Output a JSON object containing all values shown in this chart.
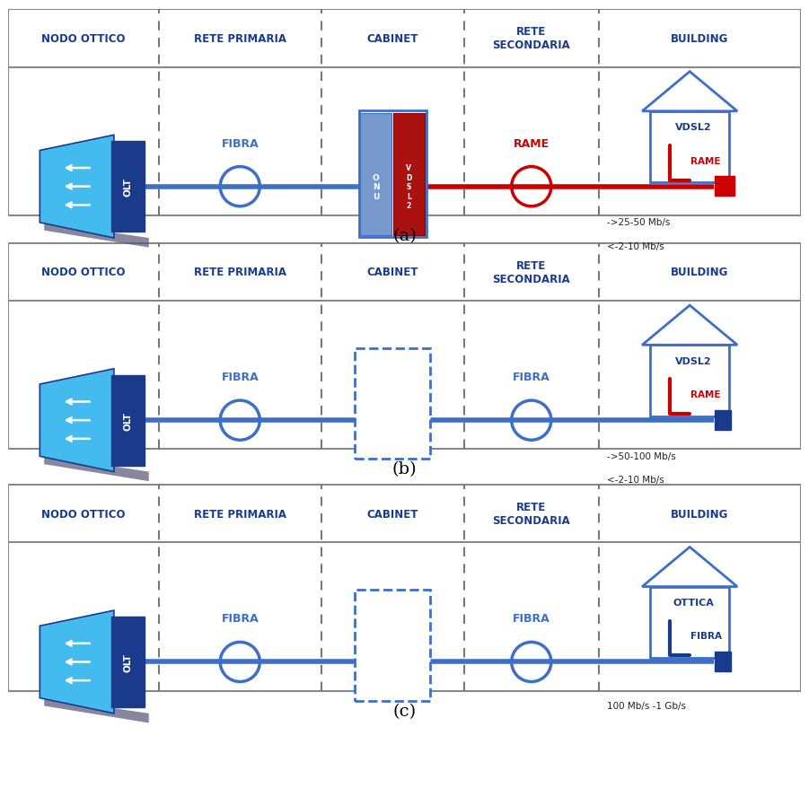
{
  "fig_width": 9.01,
  "fig_height": 8.79,
  "bg_color": "#ffffff",
  "cols": [
    0.0,
    0.19,
    0.395,
    0.575,
    0.745,
    1.0
  ],
  "hdr_texts": [
    "NODO OTTICO",
    "RETE PRIMARIA",
    "CABINET",
    "RETE\nSECONDARIA",
    "BUILDING"
  ],
  "hdr_color": "#1a3a8c",
  "line_blue": "#3d6fc9",
  "line_red": "#cc0000",
  "olt_light": "#44bbee",
  "olt_dark": "#1a3a8c",
  "panel_labels": [
    "(a)",
    "(b)",
    "(c)"
  ],
  "panel_a_speed1": "->25-50 Mb/s",
  "panel_a_speed2": "<-2-10 Mb/s",
  "panel_b_speed1": "->50-100 Mb/s",
  "panel_b_speed2": "<-2-10 Mb/s",
  "panel_c_speed": "100 Mb/s -1 Gb/s"
}
